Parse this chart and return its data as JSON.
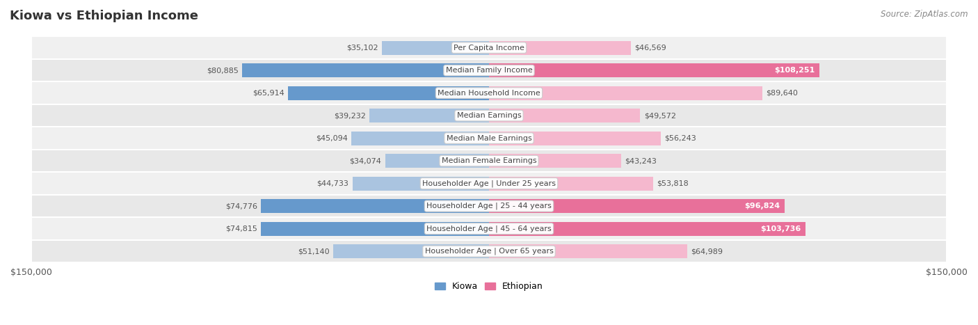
{
  "title": "Kiowa vs Ethiopian Income",
  "source": "Source: ZipAtlas.com",
  "categories": [
    "Per Capita Income",
    "Median Family Income",
    "Median Household Income",
    "Median Earnings",
    "Median Male Earnings",
    "Median Female Earnings",
    "Householder Age | Under 25 years",
    "Householder Age | 25 - 44 years",
    "Householder Age | 45 - 64 years",
    "Householder Age | Over 65 years"
  ],
  "kiowa_values": [
    35102,
    80885,
    65914,
    39232,
    45094,
    34074,
    44733,
    74776,
    74815,
    51140
  ],
  "ethiopian_values": [
    46569,
    108251,
    89640,
    49572,
    56243,
    43243,
    53818,
    96824,
    103736,
    64989
  ],
  "max_value": 150000,
  "kiowa_color_light": "#aac4e0",
  "kiowa_color_dark": "#6699cc",
  "ethiopian_color_light": "#f5b8ce",
  "ethiopian_color_dark": "#e8709a",
  "row_bg_odd": "#f0f0f0",
  "row_bg_even": "#e8e8e8",
  "row_border_color": "#ffffff",
  "label_bg_color": "#ffffff",
  "label_border_color": "#cccccc",
  "bg_color": "#ffffff",
  "title_color": "#333333",
  "source_color": "#888888",
  "value_dark_color": "#555555",
  "value_white_color": "#ffffff",
  "inside_label_threshold_kiowa": 65000,
  "inside_label_threshold_ethiopian": 90000
}
